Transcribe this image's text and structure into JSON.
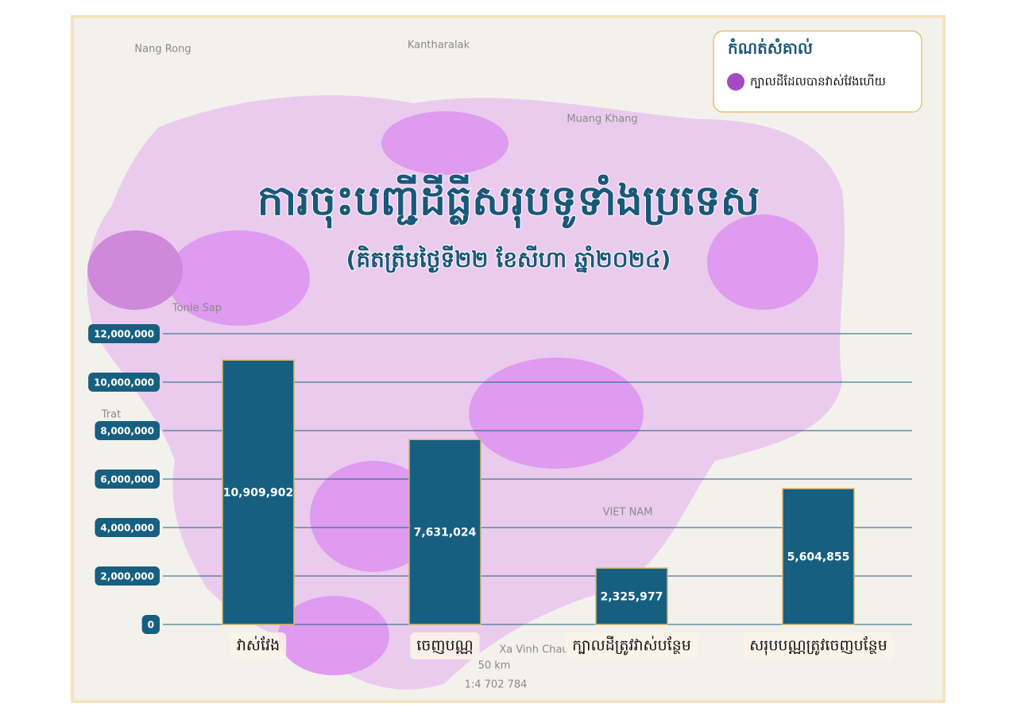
{
  "chart_data": {
    "type": "bar",
    "title": "ការចុះបញ្ជីដីធ្លីសរុបទូទាំងប្រទេស",
    "subtitle": "(គិតត្រឹមថ្ងៃទី២២ ខែសីហា ឆ្នាំ២០២៤)",
    "categories": [
      "វាស់វែង",
      "ចេញបណ្ណ",
      "ក្បាលដីត្រូវវាស់បន្ថែម",
      "សរុបបណ្ណត្រូវចេញបន្ថែម"
    ],
    "values": [
      10909902,
      7631024,
      2325977,
      5604855
    ],
    "value_labels": [
      "10,909,902",
      "7,631,024",
      "2,325,977",
      "5,604,855"
    ],
    "color": "#175f80",
    "ylim": [
      0,
      12000000
    ],
    "yticks": [
      0,
      {
        "value": 2000000,
        "label": "2,000,000"
      },
      {
        "value": 4000000,
        "label": "4,000,000"
      },
      {
        "value": 6000000,
        "label": "6,000,000"
      },
      {
        "value": 8000000,
        "label": "8,000,000"
      },
      {
        "value": 10000000,
        "label": "10,000,000"
      },
      {
        "value": 12000000,
        "label": "12,000,000"
      }
    ],
    "grid": true,
    "legend": {
      "title": "កំណត់សំគាល់",
      "items": [
        {
          "label": "ក្បាលដីដែលបានវាស់វែងហើយ",
          "color": "#a349c4"
        }
      ]
    }
  },
  "map": {
    "labels": [
      "Nang Rong",
      "Kantharalak",
      "Muang Khang",
      "Tonle Sap",
      "Trat",
      "VIET NAM",
      "Xa Vinh Chau",
      "50 km",
      "1:4 702 784"
    ]
  }
}
